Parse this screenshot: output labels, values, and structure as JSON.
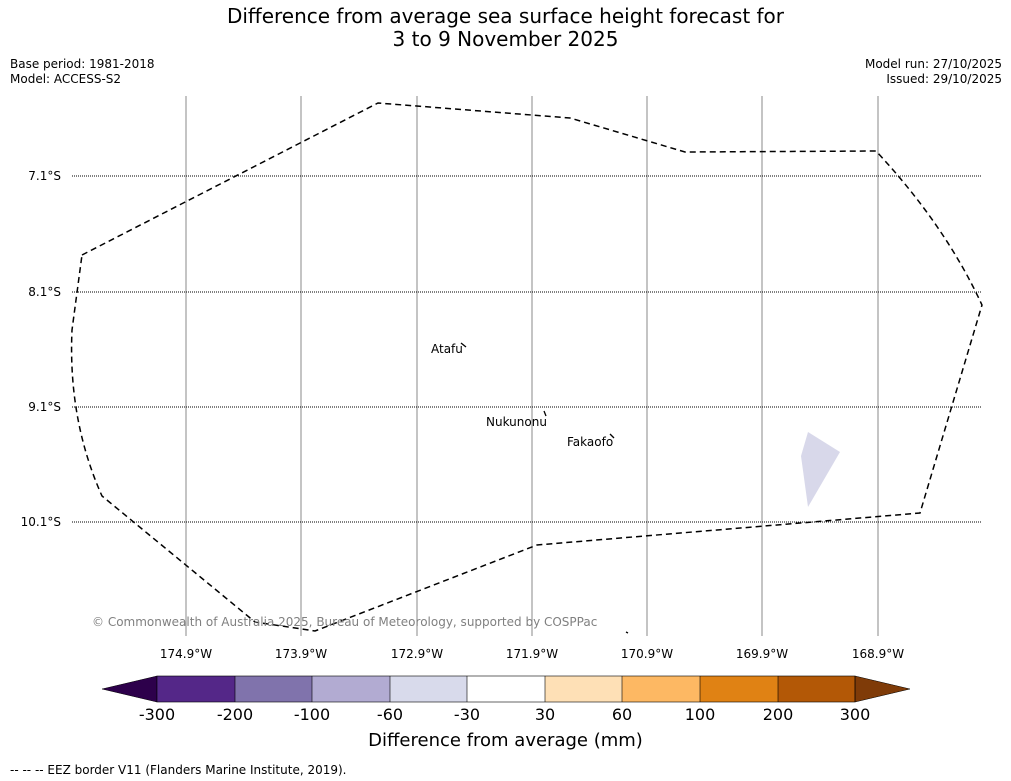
{
  "title": {
    "line1": "Difference from average sea surface height forecast for",
    "line2": "3 to 9 November 2025"
  },
  "meta": {
    "base_period": "Base period: 1981-2018",
    "model": "Model: ACCESS-S2",
    "model_run": "Model run: 27/10/2025",
    "issued": "Issued: 29/10/2025"
  },
  "map": {
    "latitude_labels": [
      "7.1°S",
      "8.1°S",
      "9.1°S",
      "10.1°S"
    ],
    "longitude_labels": [
      "174.9°W",
      "173.9°W",
      "172.9°W",
      "171.9°W",
      "170.9°W",
      "169.9°W",
      "168.9°W"
    ],
    "places": [
      "Atafu",
      "Nukunonu",
      "Fakaofo"
    ],
    "anomaly_patch_color": "#d8d8ea",
    "copyright": "© Commonwealth of Australia 2025, Bureau of Meteorology, supported by COSPPac"
  },
  "colorbar": {
    "label": "Difference from average (mm)",
    "ticks": [
      "-300",
      "-200",
      "-100",
      "-60",
      "-30",
      "30",
      "60",
      "100",
      "200",
      "300"
    ],
    "colors": [
      "#2d004b",
      "#542788",
      "#8073ac",
      "#b2abd2",
      "#d8daeb",
      "#ffffff",
      "#fee0b6",
      "#fdb863",
      "#e08214",
      "#b35806",
      "#7f3b08"
    ]
  },
  "legend_note": "--  --  -- EEZ border V11 (Flanders Marine Institute, 2019)."
}
